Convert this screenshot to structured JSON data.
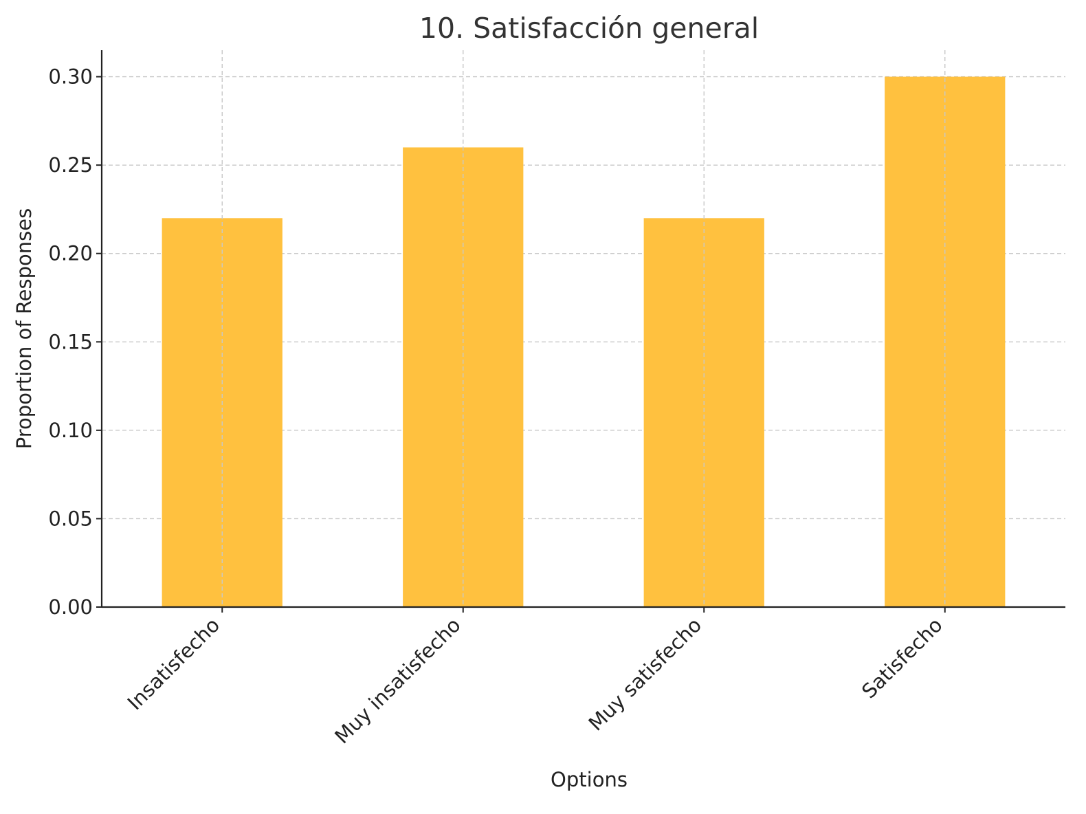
{
  "chart_data": {
    "type": "bar",
    "title": "10. Satisfacción general",
    "xlabel": "Options",
    "ylabel": "Proportion of Responses",
    "categories": [
      "Insatisfecho",
      "Muy insatisfecho",
      "Muy satisfecho",
      "Satisfecho"
    ],
    "values": [
      0.22,
      0.26,
      0.22,
      0.3
    ],
    "ylim": [
      0,
      0.315
    ],
    "yticks": [
      "0.00",
      "0.05",
      "0.10",
      "0.15",
      "0.20",
      "0.25",
      "0.30"
    ],
    "grid": true,
    "bar_color": "#FFC13F",
    "grid_color": "#c8c8c8",
    "axis_color": "#222222"
  }
}
